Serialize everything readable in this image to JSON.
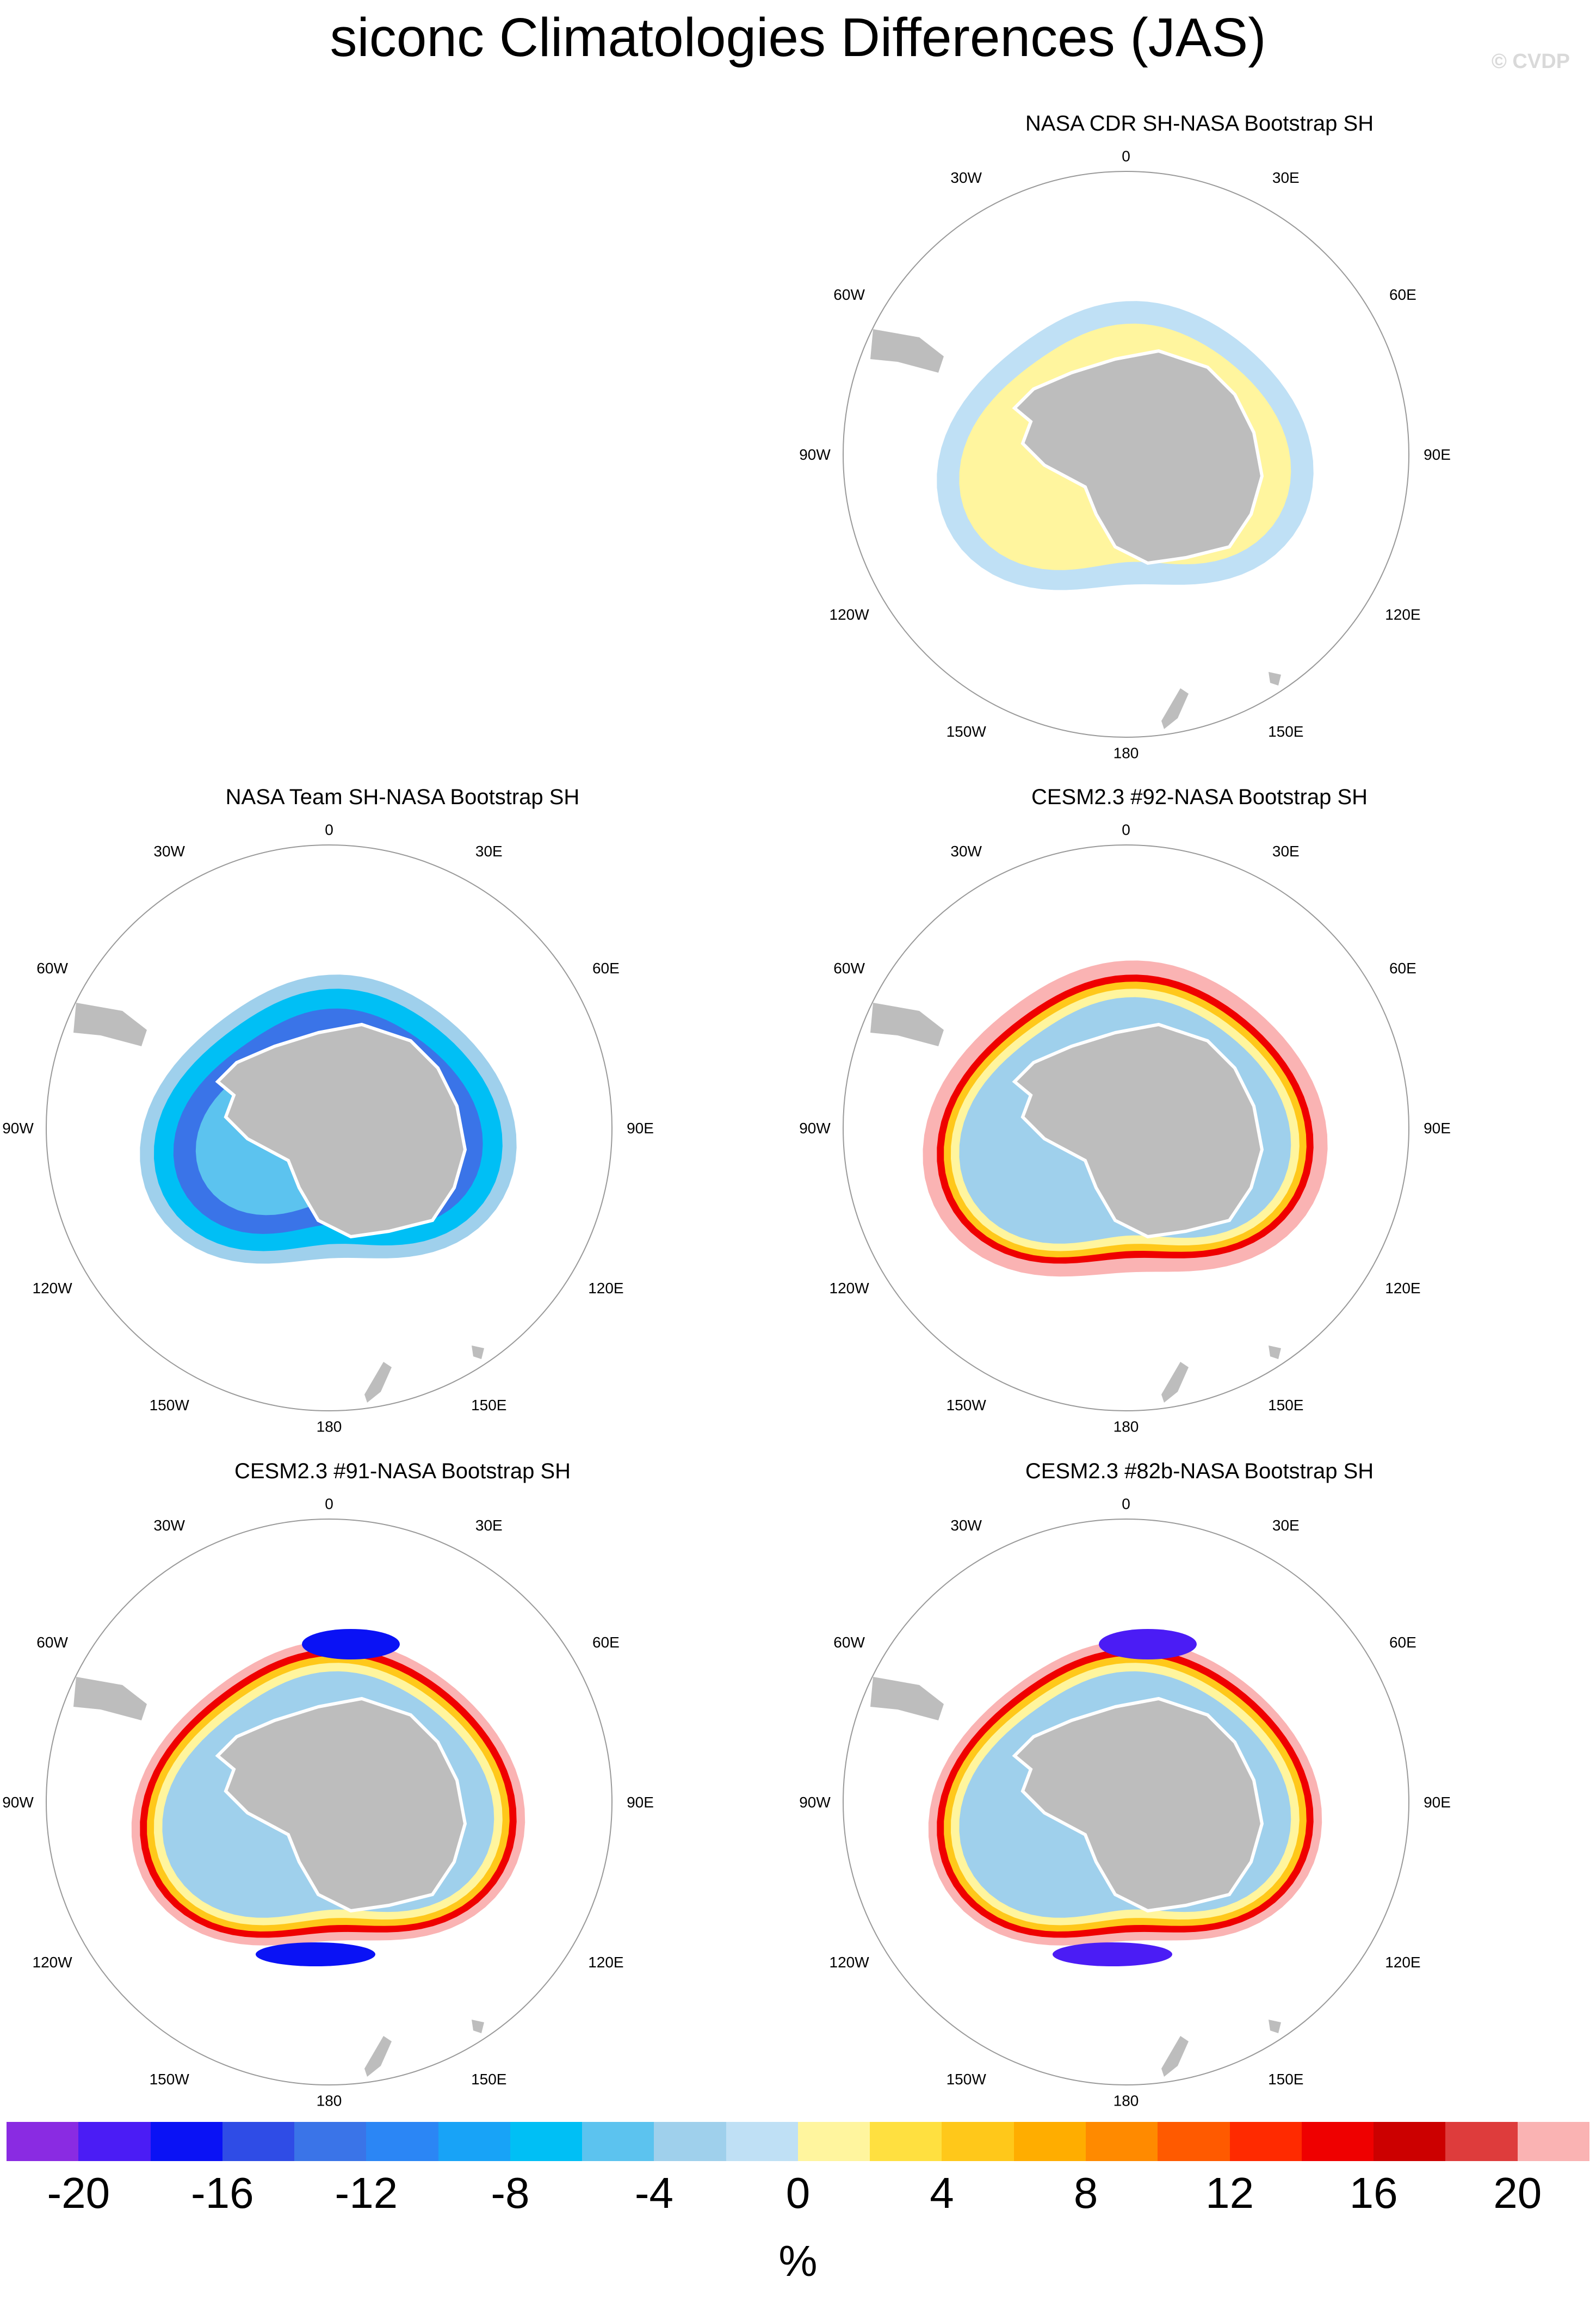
{
  "title": "siconc Climatologies Differences (JAS)",
  "watermark": "© CVDP",
  "lon_labels": {
    "l0": "0",
    "l30e": "30E",
    "l60e": "60E",
    "l90e": "90E",
    "l120e": "120E",
    "l150e": "150E",
    "l180": "180",
    "l150w": "150W",
    "l120w": "120W",
    "l90w": "90W",
    "l60w": "60W",
    "l30w": "30W"
  },
  "panels": [
    {
      "title": "NASA CDR SH-NASA Bootstrap SH",
      "pattern": "cdr"
    },
    {
      "title": "NASA Team SH-NASA Bootstrap SH",
      "pattern": "team"
    },
    {
      "title": "CESM2.3 #92-NASA Bootstrap SH",
      "pattern": "m92"
    },
    {
      "title": "CESM2.3 #91-NASA Bootstrap SH",
      "pattern": "m91"
    },
    {
      "title": "CESM2.3 #82b-NASA Bootstrap SH",
      "pattern": "m82b"
    }
  ],
  "colorbar": {
    "colors": [
      "#8a2be2",
      "#4b1cf5",
      "#0a12f5",
      "#2f4ce6",
      "#3a74e8",
      "#2b86f5",
      "#18a3f7",
      "#00bff5",
      "#5cc3ef",
      "#9fd0ec",
      "#bfe0f5",
      "#fff59e",
      "#ffe040",
      "#ffc81a",
      "#ffad00",
      "#ff8a00",
      "#ff5a00",
      "#ff2a00",
      "#ef0000",
      "#cc0000",
      "#de3c3c",
      "#fab3b3"
    ],
    "labels": [
      "-20",
      "-16",
      "-12",
      "-8",
      "-4",
      "0",
      "4",
      "8",
      "12",
      "16",
      "20"
    ],
    "units": "%"
  }
}
